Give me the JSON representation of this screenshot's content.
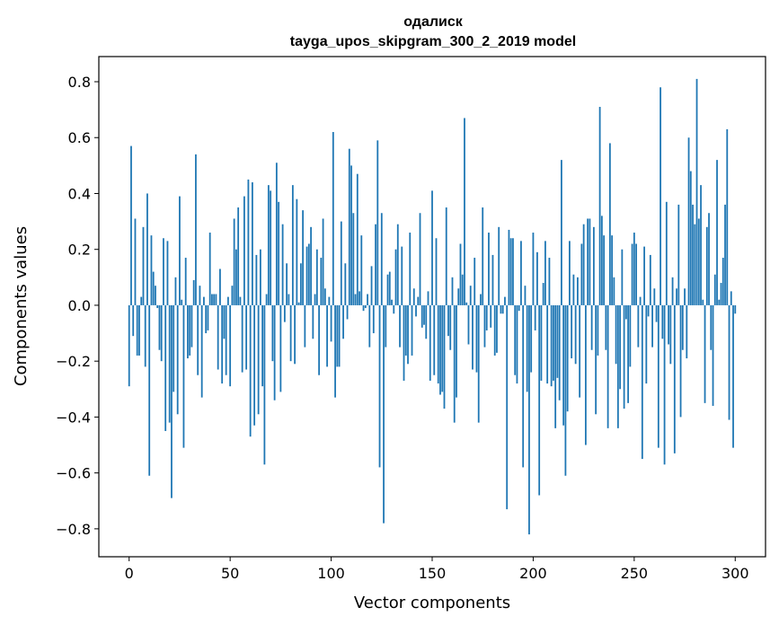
{
  "chart_data": {
    "type": "bar",
    "title_line1": "одалиск",
    "title_line2": "tayga_upos_skipgram_300_2_2019 model",
    "xlabel": "Vector components",
    "ylabel": "Components values",
    "xlim": [
      -15,
      315
    ],
    "ylim": [
      -0.9,
      0.89
    ],
    "xticks": [
      0,
      50,
      100,
      150,
      200,
      250,
      300
    ],
    "xtick_labels": [
      "0",
      "50",
      "100",
      "150",
      "200",
      "250",
      "300"
    ],
    "yticks": [
      0.8,
      0.6,
      0.4,
      0.2,
      0.0,
      -0.2,
      -0.4,
      -0.6,
      -0.8
    ],
    "ytick_labels": [
      "0.8",
      "0.6",
      "0.4",
      "0.2",
      "0.0",
      "−0.2",
      "−0.4",
      "−0.6",
      "−0.8"
    ],
    "bar_color": "#1f77b4",
    "values": [
      -0.29,
      0.57,
      -0.11,
      0.31,
      -0.18,
      -0.18,
      0.03,
      0.28,
      -0.22,
      0.4,
      -0.61,
      0.25,
      0.12,
      0.07,
      -0.01,
      -0.16,
      -0.2,
      0.24,
      -0.45,
      0.23,
      -0.42,
      -0.69,
      -0.31,
      0.1,
      -0.39,
      0.39,
      0.02,
      -0.51,
      0.17,
      -0.19,
      -0.18,
      -0.15,
      0.09,
      0.54,
      -0.25,
      0.07,
      -0.33,
      0.03,
      -0.1,
      -0.09,
      0.26,
      0.04,
      0.04,
      0.04,
      -0.23,
      0.13,
      -0.28,
      -0.12,
      -0.25,
      0.03,
      -0.29,
      0.07,
      0.31,
      0.2,
      0.35,
      0.03,
      -0.24,
      0.39,
      -0.23,
      0.45,
      -0.47,
      0.44,
      -0.43,
      0.18,
      -0.39,
      0.2,
      -0.29,
      -0.57,
      0.04,
      0.43,
      0.41,
      -0.2,
      -0.34,
      0.51,
      0.37,
      -0.31,
      0.29,
      -0.06,
      0.15,
      0.04,
      -0.2,
      0.43,
      -0.21,
      0.38,
      0.01,
      0.15,
      0.34,
      -0.15,
      0.21,
      0.22,
      0.28,
      -0.12,
      0.04,
      0.2,
      -0.25,
      0.17,
      0.31,
      0.06,
      -0.22,
      0.03,
      -0.13,
      0.62,
      -0.33,
      -0.22,
      -0.22,
      0.3,
      -0.12,
      0.15,
      -0.05,
      0.56,
      0.5,
      0.33,
      0.04,
      0.47,
      0.05,
      0.25,
      -0.02,
      -0.01,
      0.04,
      -0.15,
      0.14,
      -0.1,
      0.29,
      0.59,
      -0.58,
      0.33,
      -0.78,
      -0.15,
      0.11,
      0.12,
      0.02,
      -0.03,
      0.2,
      0.29,
      -0.15,
      0.21,
      -0.27,
      -0.18,
      -0.21,
      0.26,
      -0.18,
      0.06,
      -0.04,
      0.03,
      0.33,
      -0.08,
      -0.07,
      -0.12,
      0.05,
      -0.27,
      0.41,
      -0.25,
      0.24,
      -0.28,
      -0.32,
      -0.31,
      -0.37,
      0.35,
      -0.11,
      -0.16,
      0.1,
      -0.42,
      -0.33,
      0.06,
      0.22,
      0.11,
      0.67,
      0.01,
      -0.14,
      0.07,
      -0.23,
      0.17,
      -0.24,
      -0.42,
      0.04,
      0.35,
      -0.15,
      -0.09,
      0.26,
      -0.08,
      0.18,
      -0.18,
      -0.17,
      0.28,
      -0.03,
      -0.03,
      0.03,
      -0.73,
      0.27,
      0.24,
      0.24,
      -0.25,
      -0.28,
      -0.02,
      0.23,
      -0.58,
      0.07,
      -0.31,
      -0.82,
      -0.24,
      0.26,
      -0.09,
      0.19,
      -0.68,
      -0.27,
      0.08,
      0.23,
      -0.28,
      0.17,
      -0.29,
      -0.27,
      -0.44,
      -0.26,
      -0.34,
      0.52,
      -0.43,
      -0.61,
      -0.38,
      0.23,
      -0.19,
      0.11,
      -0.21,
      0.1,
      -0.33,
      0.22,
      0.29,
      -0.5,
      0.31,
      0.31,
      -0.16,
      0.28,
      -0.39,
      -0.18,
      0.71,
      0.32,
      0.25,
      -0.16,
      -0.44,
      0.58,
      0.25,
      0.1,
      -0.21,
      -0.44,
      -0.3,
      0.2,
      -0.37,
      -0.05,
      -0.35,
      -0.22,
      0.22,
      0.26,
      0.22,
      -0.15,
      0.03,
      -0.55,
      0.21,
      -0.28,
      -0.04,
      0.18,
      -0.15,
      0.06,
      -0.06,
      -0.51,
      0.78,
      -0.12,
      -0.57,
      0.37,
      -0.14,
      -0.21,
      0.1,
      -0.53,
      0.06,
      0.36,
      -0.4,
      -0.16,
      0.06,
      -0.19,
      0.6,
      0.48,
      0.36,
      0.29,
      0.81,
      0.31,
      0.43,
      0.02,
      -0.35,
      0.28,
      0.33,
      -0.16,
      -0.36,
      0.11,
      0.52,
      0.02,
      0.08,
      0.17,
      0.36,
      0.63,
      -0.41,
      0.05,
      -0.51,
      -0.03
    ]
  }
}
